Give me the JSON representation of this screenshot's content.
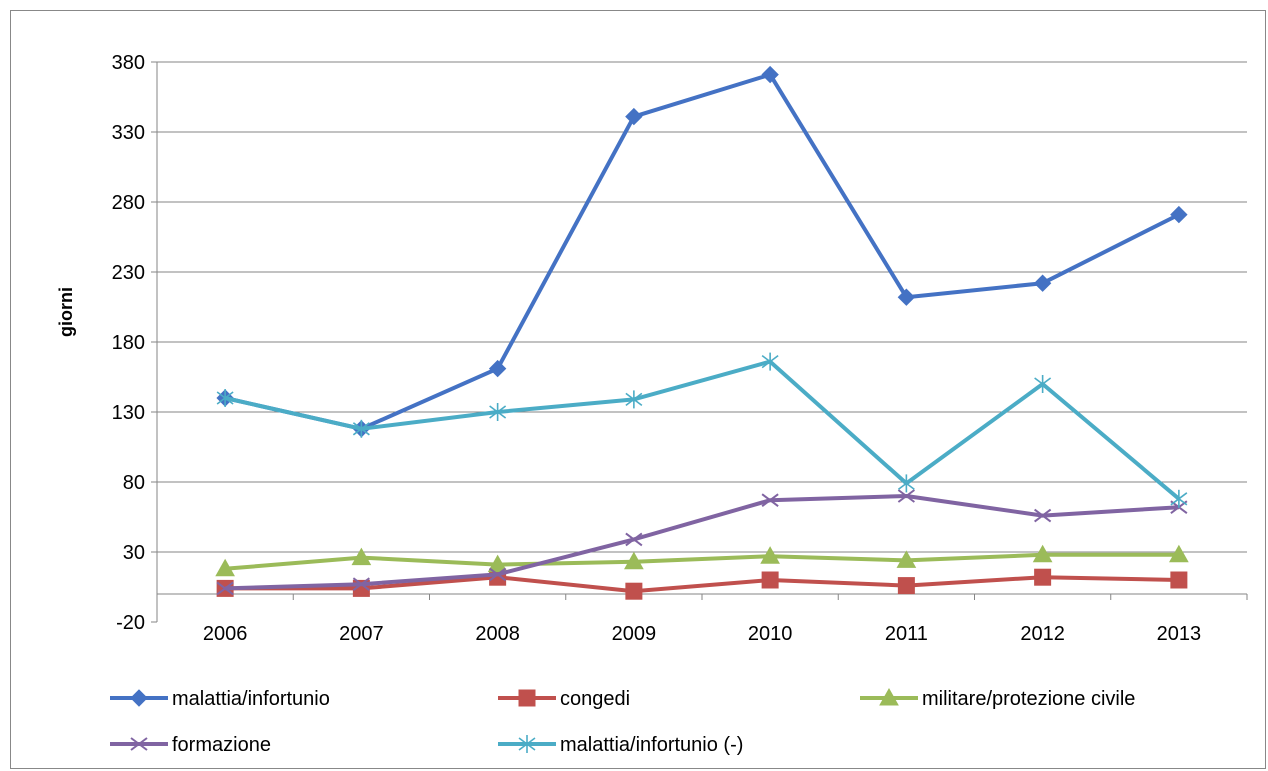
{
  "chart_data": {
    "type": "line",
    "title": "",
    "xlabel": "",
    "ylabel": "giorni",
    "categories": [
      "2006",
      "2007",
      "2008",
      "2009",
      "2010",
      "2011",
      "2012",
      "2013"
    ],
    "yticks": [
      -20,
      30,
      80,
      130,
      180,
      230,
      280,
      330,
      380
    ],
    "ylim": [
      -20,
      380
    ],
    "grid": "horizontal",
    "legend": "bottom",
    "series": [
      {
        "name": "malattia/infortunio",
        "color": "#4472C4",
        "marker": "diamond",
        "values": [
          140,
          118,
          161,
          341,
          371,
          212,
          222,
          271
        ]
      },
      {
        "name": "congedi",
        "color": "#C0504D",
        "marker": "square",
        "values": [
          4,
          4,
          12,
          2,
          10,
          6,
          12,
          10
        ]
      },
      {
        "name": "militare/protezione civile",
        "color": "#9BBB59",
        "marker": "triangle",
        "values": [
          18,
          26,
          21,
          23,
          27,
          24,
          28,
          28
        ]
      },
      {
        "name": "formazione",
        "color": "#8064A2",
        "marker": "x",
        "values": [
          4,
          7,
          14,
          39,
          67,
          70,
          56,
          62
        ]
      },
      {
        "name": "malattia/infortunio (-)",
        "color": "#4BACC6",
        "marker": "star",
        "values": [
          140,
          118,
          130,
          139,
          166,
          79,
          150,
          68
        ]
      }
    ]
  }
}
